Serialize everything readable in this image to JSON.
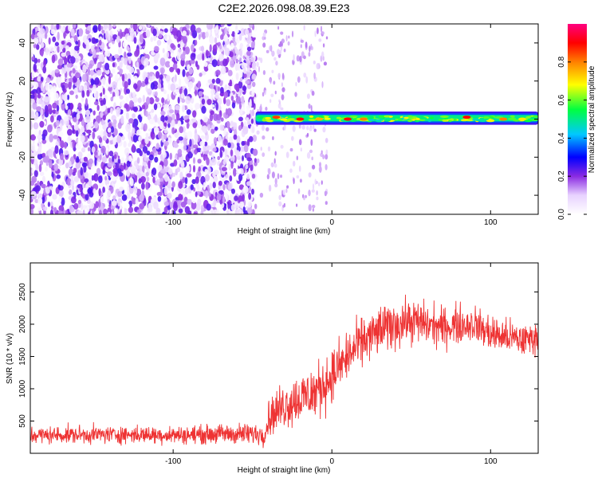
{
  "title": "C2E2.2026.098.08.39.E23",
  "chart_data": [
    {
      "type": "heatmap",
      "xlabel": "Height of straight line (km)",
      "ylabel": "Frequency (Hz)",
      "xlim": [
        -190,
        130
      ],
      "ylim": [
        -50,
        50
      ],
      "xticks": [
        -100,
        0,
        100
      ],
      "xtick_labels": [
        "-100",
        "0",
        "100"
      ],
      "yticks": [
        -40,
        -20,
        0,
        20,
        40
      ],
      "ytick_labels": [
        "-40",
        "-20",
        "0",
        "20",
        "40"
      ],
      "colorbar": {
        "label": "Normalized spectral amplitude",
        "range": [
          0,
          1
        ],
        "ticks": [
          0,
          0.2,
          0.4,
          0.6,
          0.8
        ],
        "tick_labels": [
          "0.0",
          "0.2",
          "0.4",
          "0.6",
          "0.8"
        ]
      },
      "regions": [
        {
          "x_range": [
            -190,
            -48
          ],
          "freq_range": [
            -50,
            50
          ],
          "amplitude_range": [
            0.0,
            0.25
          ]
        },
        {
          "x_range": [
            -48,
            130
          ],
          "freq_range": [
            -3,
            4
          ],
          "amplitude_range": [
            0.15,
            0.9
          ]
        }
      ],
      "peaks": [
        {
          "x": -35,
          "freq": 1,
          "amplitude": 0.85
        },
        {
          "x": -20,
          "freq": 0,
          "amplitude": 0.9
        },
        {
          "x": -8,
          "freq": 0,
          "amplitude": 0.75
        },
        {
          "x": 10,
          "freq": 0,
          "amplitude": 0.9
        },
        {
          "x": 20,
          "freq": 0,
          "amplitude": 0.8
        },
        {
          "x": 85,
          "freq": 1,
          "amplitude": 0.9
        },
        {
          "x": 108,
          "freq": 0,
          "amplitude": 0.8
        },
        {
          "x": 120,
          "freq": 0,
          "amplitude": 0.7
        }
      ],
      "grid": false
    },
    {
      "type": "line",
      "xlabel": "Height of straight line (km)",
      "ylabel": "SNR (10 * v/v)",
      "xlim": [
        -190,
        130
      ],
      "ylim": [
        0,
        2950
      ],
      "xticks": [
        -100,
        0,
        100
      ],
      "xtick_labels": [
        "-100",
        "0",
        "100"
      ],
      "yticks": [
        500,
        1000,
        1500,
        2000,
        2500
      ],
      "ytick_labels": [
        "500",
        "1000",
        "1500",
        "2000",
        "2500"
      ],
      "color": "#ee3333",
      "series": [
        {
          "x": [
            -190,
            -170,
            -150,
            -130,
            -110,
            -90,
            -70,
            -50,
            -42,
            -40,
            -30,
            -20,
            -10,
            0,
            10,
            20,
            30,
            40,
            50,
            60,
            70,
            80,
            90,
            100,
            110,
            120,
            130
          ],
          "y_center": [
            280,
            285,
            290,
            290,
            285,
            285,
            300,
            300,
            300,
            550,
            750,
            850,
            950,
            1200,
            1500,
            1750,
            1900,
            2000,
            2050,
            2000,
            1950,
            2000,
            2000,
            1850,
            1800,
            1750,
            1800
          ],
          "y_spread": [
            200,
            200,
            200,
            200,
            200,
            200,
            220,
            250,
            250,
            400,
            550,
            600,
            650,
            600,
            600,
            550,
            550,
            550,
            500,
            500,
            450,
            450,
            400,
            450,
            400,
            400,
            350
          ]
        }
      ],
      "grid": false
    }
  ]
}
